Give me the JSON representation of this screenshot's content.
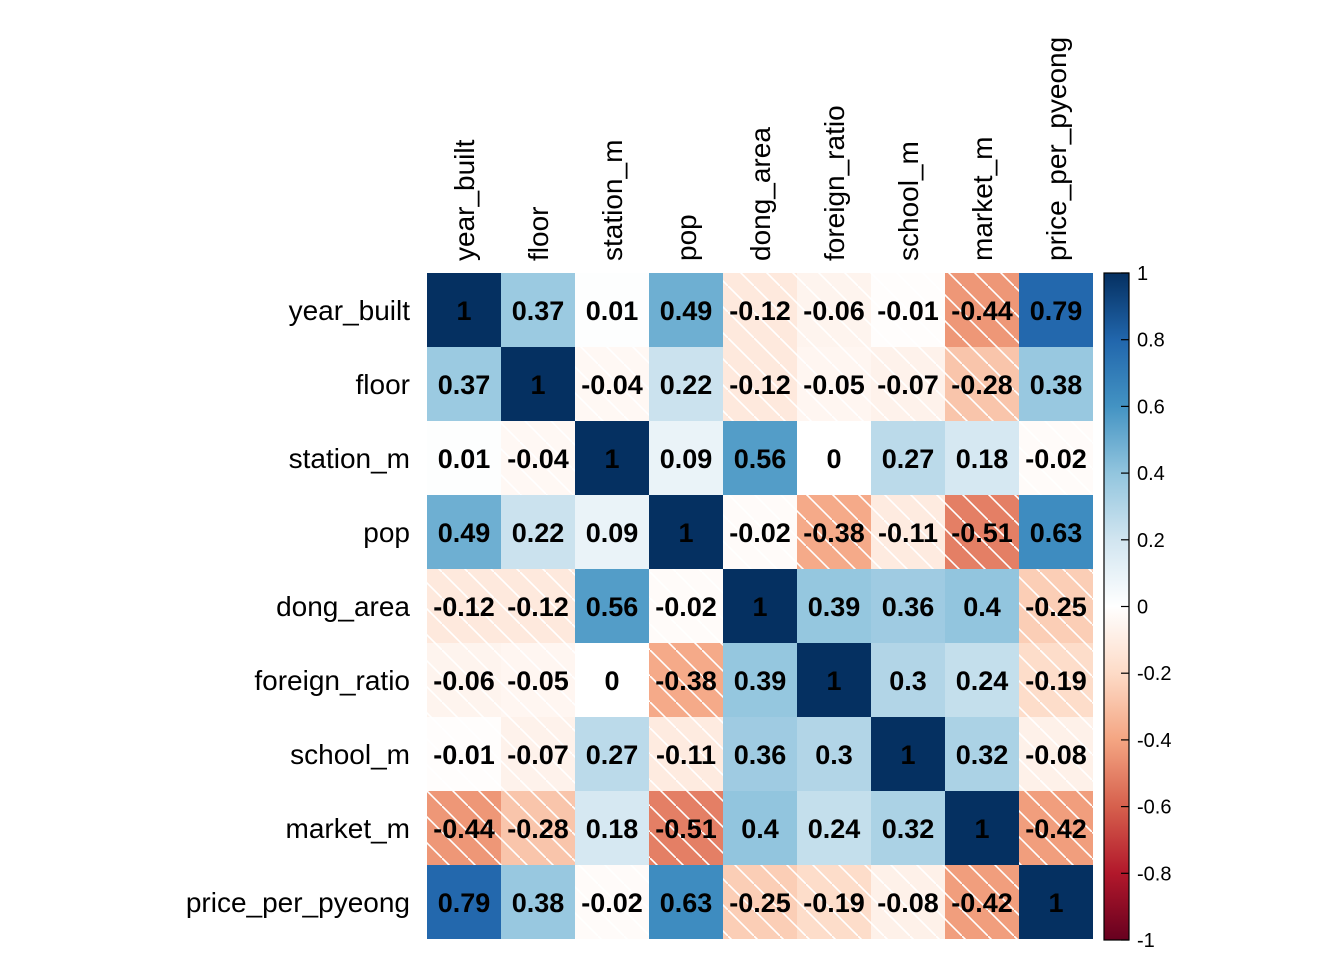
{
  "chart_data": {
    "type": "heatmap",
    "variables": [
      "year_built",
      "floor",
      "station_m",
      "pop",
      "dong_area",
      "foreign_ratio",
      "school_m",
      "market_m",
      "price_per_pyeong"
    ],
    "matrix": [
      [
        1,
        0.37,
        0.01,
        0.49,
        -0.12,
        -0.06,
        -0.01,
        -0.44,
        0.79
      ],
      [
        0.37,
        1,
        -0.04,
        0.22,
        -0.12,
        -0.05,
        -0.07,
        -0.28,
        0.38
      ],
      [
        0.01,
        -0.04,
        1,
        0.09,
        0.56,
        0,
        0.27,
        0.18,
        -0.02
      ],
      [
        0.49,
        0.22,
        0.09,
        1,
        -0.02,
        -0.38,
        -0.11,
        -0.51,
        0.63
      ],
      [
        -0.12,
        -0.12,
        0.56,
        -0.02,
        1,
        0.39,
        0.36,
        0.4,
        -0.25
      ],
      [
        -0.06,
        -0.05,
        0,
        -0.38,
        0.39,
        1,
        0.3,
        0.24,
        -0.19
      ],
      [
        -0.01,
        -0.07,
        0.27,
        -0.11,
        0.36,
        0.3,
        1,
        0.32,
        -0.08
      ],
      [
        -0.44,
        -0.28,
        0.18,
        -0.51,
        0.4,
        0.24,
        0.32,
        1,
        -0.42
      ],
      [
        0.79,
        0.38,
        -0.02,
        0.63,
        -0.25,
        -0.19,
        -0.08,
        -0.42,
        1
      ]
    ],
    "colorbar": {
      "range": [
        -1,
        1
      ],
      "ticks": [
        "1",
        "0.8",
        "0.6",
        "0.4",
        "0.2",
        "0",
        "-0.2",
        "-0.4",
        "-0.6",
        "-0.8",
        "-1"
      ],
      "palette": [
        "#67001F",
        "#B2182B",
        "#D6604D",
        "#F4A582",
        "#FDDBC7",
        "#FFFFFF",
        "#D1E5F0",
        "#92C5DE",
        "#4393C3",
        "#2166AC",
        "#053061"
      ]
    },
    "negative_cells_hatched": true
  }
}
